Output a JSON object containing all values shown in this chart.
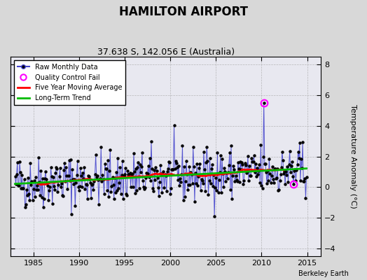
{
  "title": "HAMILTON AIRPORT",
  "subtitle": "37.638 S, 142.056 E (Australia)",
  "ylabel": "Temperature Anomaly (°C)",
  "credit": "Berkeley Earth",
  "xlim": [
    1982.5,
    2016.5
  ],
  "ylim": [
    -4.5,
    8.5
  ],
  "yticks": [
    -4,
    -2,
    0,
    2,
    4,
    6,
    8
  ],
  "xticks": [
    1985,
    1990,
    1995,
    2000,
    2005,
    2010,
    2015
  ],
  "start_year": 1983,
  "end_year": 2014,
  "bg_color": "#d8d8d8",
  "plot_bg_color": "#e8e8f0",
  "raw_line_color": "#4444cc",
  "raw_dot_color": "#000000",
  "moving_avg_color": "#ff0000",
  "trend_color": "#00bb00",
  "qc_color": "#ff00ff",
  "seed": 42
}
